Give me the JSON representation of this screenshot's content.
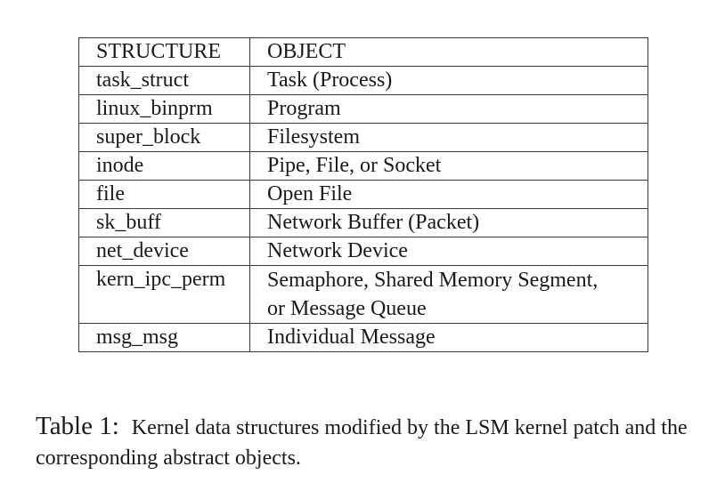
{
  "table": {
    "headers": [
      "STRUCTURE",
      "OBJECT"
    ],
    "rows": [
      {
        "structure": "task_struct",
        "object": [
          "Task (Process)"
        ]
      },
      {
        "structure": "linux_binprm",
        "object": [
          "Program"
        ]
      },
      {
        "structure": "super_block",
        "object": [
          "Filesystem"
        ]
      },
      {
        "structure": "inode",
        "object": [
          "Pipe, File, or Socket"
        ]
      },
      {
        "structure": "file",
        "object": [
          "Open File"
        ]
      },
      {
        "structure": "sk_buff",
        "object": [
          "Network Buffer (Packet)"
        ]
      },
      {
        "structure": "net_device",
        "object": [
          "Network Device"
        ]
      },
      {
        "structure": "kern_ipc_perm",
        "object": [
          "Semaphore, Shared Memory Segment,",
          "or Message Queue"
        ]
      },
      {
        "structure": "msg_msg",
        "object": [
          "Individual Message"
        ]
      }
    ]
  },
  "caption": {
    "label": "Table 1:",
    "text": "Kernel data structures modified by the LSM kernel patch and the corresponding abstract objects."
  }
}
